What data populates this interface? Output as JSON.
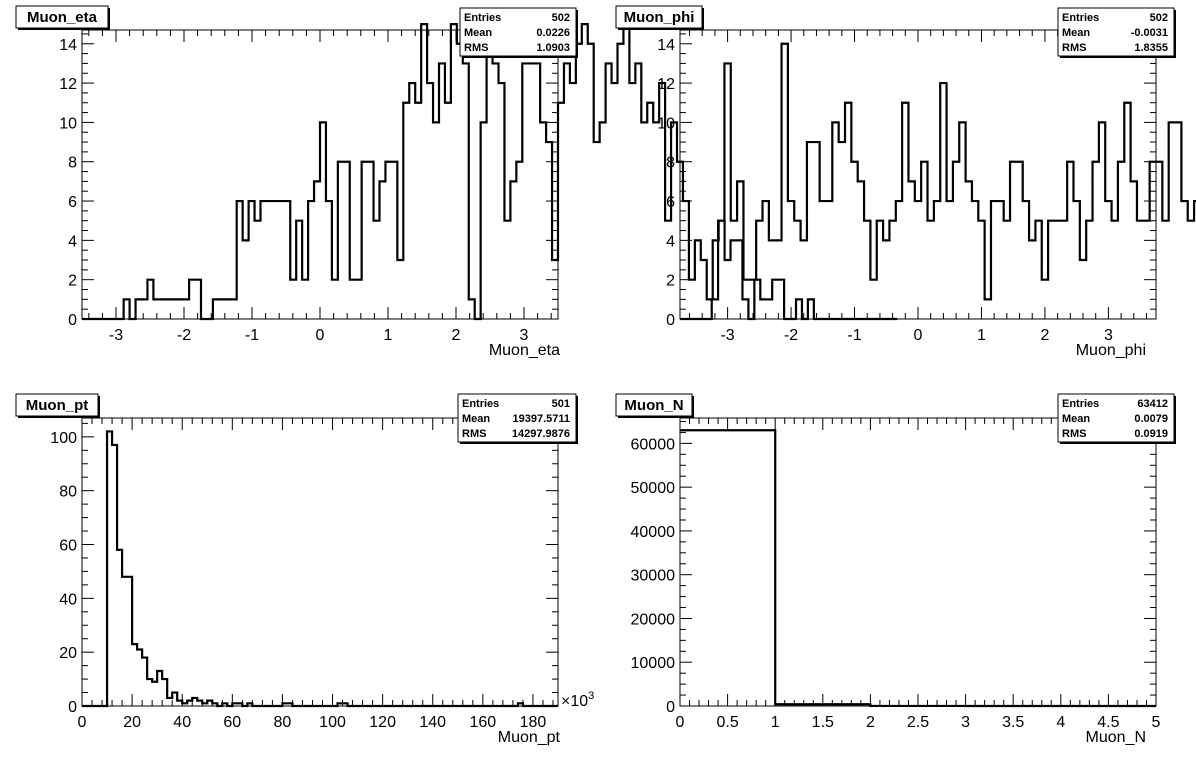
{
  "chart_data": [
    {
      "type": "bar",
      "title": "Muon_eta",
      "xlabel": "Muon_eta",
      "ylabel": "",
      "xlim": [
        -3.5,
        3.5
      ],
      "ylim": [
        0,
        14.7
      ],
      "xticks": [
        -3,
        -2,
        -1,
        0,
        1,
        2,
        3
      ],
      "yticks": [
        0,
        2,
        4,
        6,
        8,
        10,
        12,
        14
      ],
      "stats": {
        "entries": "502",
        "mean": "0.0226",
        "rms": "1.0903"
      },
      "bin_start": -3.5,
      "bin_width": 0.0875,
      "values": [
        0,
        0,
        0,
        0,
        0,
        0,
        0,
        1,
        0,
        1,
        1,
        2,
        1,
        1,
        1,
        1,
        1,
        1,
        2,
        2,
        0,
        0,
        1,
        1,
        1,
        1,
        6,
        4,
        6,
        5,
        6,
        6,
        6,
        6,
        6,
        2,
        5,
        2,
        6,
        7,
        10,
        6,
        2,
        8,
        8,
        2,
        2,
        8,
        8,
        5,
        7,
        8,
        8,
        3,
        11,
        12,
        11,
        15,
        12,
        10,
        13,
        11,
        15,
        14,
        13,
        1,
        0,
        10,
        14,
        13,
        12,
        5,
        7,
        8,
        13,
        13,
        13,
        10,
        9,
        3,
        11,
        13,
        12,
        14,
        15,
        14,
        9,
        10,
        13,
        12,
        14,
        15,
        12,
        13,
        10,
        11,
        10,
        12,
        5,
        10,
        8,
        6,
        2,
        4,
        3,
        1,
        4,
        5,
        3,
        4,
        4,
        1,
        0,
        2,
        1,
        1,
        2,
        2,
        0,
        0,
        1,
        0,
        1,
        0,
        0,
        0,
        0,
        0,
        0,
        0,
        0,
        0,
        0,
        0,
        0,
        0,
        0
      ]
    },
    {
      "type": "bar",
      "title": "Muon_phi",
      "xlabel": "Muon_phi",
      "ylabel": "",
      "xlim": [
        -3.75,
        3.75
      ],
      "ylim": [
        0,
        14.7
      ],
      "xticks": [
        -3,
        -2,
        -1,
        0,
        1,
        2,
        3
      ],
      "yticks": [
        0,
        2,
        4,
        6,
        8,
        10,
        12,
        14
      ],
      "stats": {
        "entries": "502",
        "mean": "-0.0031",
        "rms": "1.8355"
      },
      "bin_start": -3.75,
      "bin_width": 0.1,
      "values": [
        0,
        0,
        0,
        0,
        0,
        1,
        5,
        13,
        5,
        7,
        2,
        2,
        5,
        6,
        4,
        4,
        14,
        6,
        5,
        4,
        9,
        9,
        6,
        6,
        10,
        9,
        11,
        8,
        7,
        5,
        2,
        5,
        4,
        5,
        6,
        11,
        7,
        6,
        8,
        5,
        6,
        12,
        6,
        8,
        10,
        7,
        6,
        5,
        1,
        6,
        6,
        5,
        8,
        8,
        6,
        4,
        5,
        2,
        5,
        5,
        5,
        8,
        6,
        3,
        5,
        8,
        10,
        6,
        5,
        8,
        11,
        7,
        5,
        5,
        8,
        8,
        5,
        10,
        10,
        6,
        5,
        6,
        8,
        8,
        8,
        7,
        5,
        5,
        8,
        5,
        5,
        4,
        10,
        6,
        8,
        1,
        0,
        0,
        0,
        0,
        0,
        0,
        0,
        0,
        0,
        0
      ]
    },
    {
      "type": "bar",
      "title": "Muon_pt",
      "xlabel": "Muon_pt",
      "ylabel": "",
      "x_multiplier": "×10^3",
      "xlim": [
        0,
        190
      ],
      "ylim": [
        0,
        107
      ],
      "xticks": [
        0,
        20,
        40,
        60,
        80,
        100,
        120,
        140,
        160,
        180
      ],
      "yticks": [
        0,
        20,
        40,
        60,
        80,
        100
      ],
      "stats": {
        "entries": "501",
        "mean": "19397.5711",
        "rms": "14297.9876"
      },
      "bin_start": 0,
      "bin_width": 2,
      "values": [
        0,
        0,
        0,
        0,
        0,
        102,
        97,
        58,
        48,
        48,
        23,
        21,
        18,
        10,
        9,
        13,
        10,
        3,
        5,
        2,
        1,
        2,
        3,
        2,
        1,
        2,
        1,
        0,
        1,
        0,
        1,
        1,
        0,
        1,
        0,
        0,
        0,
        0,
        0,
        0,
        1,
        1,
        0,
        0,
        0,
        0,
        0,
        0,
        0,
        0,
        0,
        1,
        1,
        0,
        0,
        0,
        0,
        0,
        0,
        0,
        0,
        0,
        0,
        0,
        0,
        0,
        0,
        0,
        0,
        0,
        0,
        0,
        0,
        0,
        0,
        0,
        0,
        0,
        0,
        0,
        0,
        0,
        0,
        0,
        0,
        0,
        0,
        1,
        0,
        0,
        0,
        0,
        0,
        0,
        0
      ]
    },
    {
      "type": "bar",
      "title": "Muon_N",
      "xlabel": "Muon_N",
      "ylabel": "",
      "xlim": [
        0,
        5
      ],
      "ylim": [
        0,
        65800
      ],
      "xticks": [
        0,
        0.5,
        1,
        1.5,
        2,
        2.5,
        3,
        3.5,
        4,
        4.5,
        5
      ],
      "yticks": [
        0,
        10000,
        20000,
        30000,
        40000,
        50000,
        60000
      ],
      "stats": {
        "entries": "63412",
        "mean": "0.0079",
        "rms": "0.0919"
      },
      "bin_start": 0,
      "bin_width": 1,
      "values": [
        63000,
        400,
        10,
        0,
        0
      ]
    }
  ],
  "labels": {
    "entries": "Entries",
    "mean": "Mean",
    "rms": "RMS"
  }
}
